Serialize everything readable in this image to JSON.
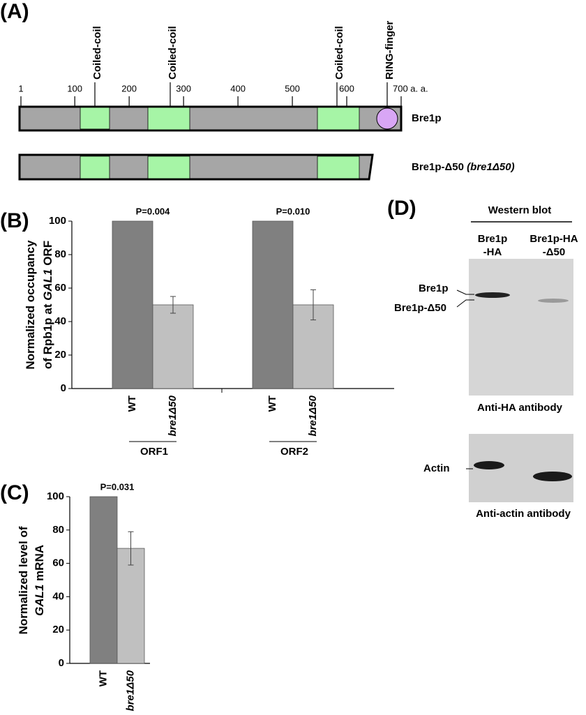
{
  "panel_a": {
    "label": "(A)",
    "ruler_ticks": [
      1,
      100,
      200,
      300,
      400,
      500,
      600,
      {
        "value": 700,
        "label": "700 a. a."
      }
    ],
    "domains": [
      "Coiled-coil",
      "Coiled-coil",
      "Coiled-coil",
      "RING-finger"
    ],
    "proteins": [
      {
        "name": "Bre1p"
      },
      {
        "name": "Bre1p-Δ50",
        "allele": "(bre1Δ50)"
      }
    ]
  },
  "chart_data": [
    {
      "type": "bar",
      "panel_label": "(B)",
      "y_label": [
        "Normalized occupancy",
        "of Rpb1p at",
        "GAL1",
        "ORF"
      ],
      "groups": [
        "ORF1",
        "ORF2"
      ],
      "series": [
        {
          "name": "WT",
          "color": "#808080",
          "values": [
            100,
            100
          ]
        },
        {
          "name": "bre1Δ50",
          "color": "#c0c0c0",
          "values": [
            50,
            50
          ],
          "errors": [
            5,
            9
          ]
        }
      ],
      "annotations": [
        "P=0.004",
        "P=0.010"
      ],
      "ylim": [
        0,
        100
      ],
      "yticks": [
        0,
        20,
        40,
        60,
        80,
        100
      ]
    },
    {
      "type": "bar",
      "panel_label": "(C)",
      "y_label": [
        "Normalized level of",
        "GAL1",
        "mRNA"
      ],
      "series": [
        {
          "name": "WT",
          "color": "#808080",
          "values": [
            100
          ]
        },
        {
          "name": "bre1Δ50",
          "color": "#c0c0c0",
          "values": [
            69
          ],
          "errors": [
            10
          ]
        }
      ],
      "annotations": [
        "P=0.031"
      ],
      "ylim": [
        0,
        100
      ],
      "yticks": [
        0,
        20,
        40,
        60,
        80,
        100
      ]
    }
  ],
  "panel_d": {
    "label": "(D)",
    "method": "Western blot",
    "lanes": [
      [
        "Bre1p",
        "-HA"
      ],
      [
        "Bre1p-HA",
        "-Δ50"
      ]
    ],
    "band_labels": [
      "Bre1p",
      "Bre1p-Δ50"
    ],
    "blot1_caption": "Anti-HA antibody",
    "actin_label": "Actin",
    "blot2_caption": "Anti-actin antibody"
  }
}
